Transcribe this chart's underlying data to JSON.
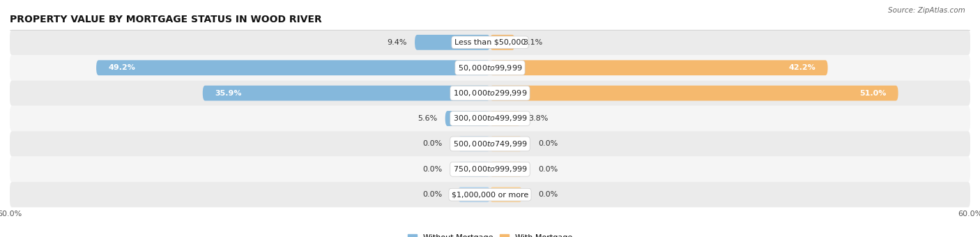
{
  "title": "PROPERTY VALUE BY MORTGAGE STATUS IN WOOD RIVER",
  "source": "Source: ZipAtlas.com",
  "categories": [
    "Less than $50,000",
    "$50,000 to $99,999",
    "$100,000 to $299,999",
    "$300,000 to $499,999",
    "$500,000 to $749,999",
    "$750,000 to $999,999",
    "$1,000,000 or more"
  ],
  "without_mortgage": [
    9.4,
    49.2,
    35.9,
    5.6,
    0.0,
    0.0,
    0.0
  ],
  "with_mortgage": [
    3.1,
    42.2,
    51.0,
    3.8,
    0.0,
    0.0,
    0.0
  ],
  "color_without": "#85b8dc",
  "color_with": "#f5b96e",
  "color_without_zero": "#b8d6ed",
  "color_with_zero": "#f9d4a0",
  "xlim": 60.0,
  "row_color_odd": "#ebebeb",
  "row_color_even": "#f5f5f5",
  "title_fontsize": 10,
  "label_fontsize": 8,
  "cat_fontsize": 8,
  "tick_fontsize": 8,
  "source_fontsize": 7.5
}
